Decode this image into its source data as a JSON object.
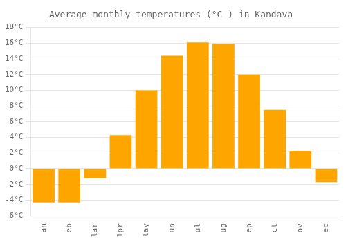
{
  "chart_data": {
    "type": "bar",
    "title": "Average monthly temperatures (°C ) in Kandava",
    "categories": [
      "an",
      "eb",
      "lar",
      "lpr",
      "lay",
      "un",
      "ul",
      "ug",
      "ep",
      "ct",
      "ov",
      "ec"
    ],
    "values": [
      -4.3,
      -4.3,
      -1.2,
      4.3,
      10.0,
      14.4,
      16.1,
      15.9,
      12.0,
      7.5,
      2.3,
      -1.7
    ],
    "color": "#FFA500",
    "ylim": [
      -6,
      18
    ],
    "yticks": [
      {
        "value": -6,
        "label": "-6°C"
      },
      {
        "value": -4,
        "label": "-4°C"
      },
      {
        "value": -2,
        "label": "-2°C"
      },
      {
        "value": 0,
        "label": "0°C"
      },
      {
        "value": 2,
        "label": "2°C"
      },
      {
        "value": 4,
        "label": "4°C"
      },
      {
        "value": 6,
        "label": "6°C"
      },
      {
        "value": 8,
        "label": "8°C"
      },
      {
        "value": 10,
        "label": "10°C"
      },
      {
        "value": 12,
        "label": "12°C"
      },
      {
        "value": 14,
        "label": "14°C"
      },
      {
        "value": 16,
        "label": "16°C"
      },
      {
        "value": 18,
        "label": "18°C"
      }
    ],
    "grid": true
  }
}
